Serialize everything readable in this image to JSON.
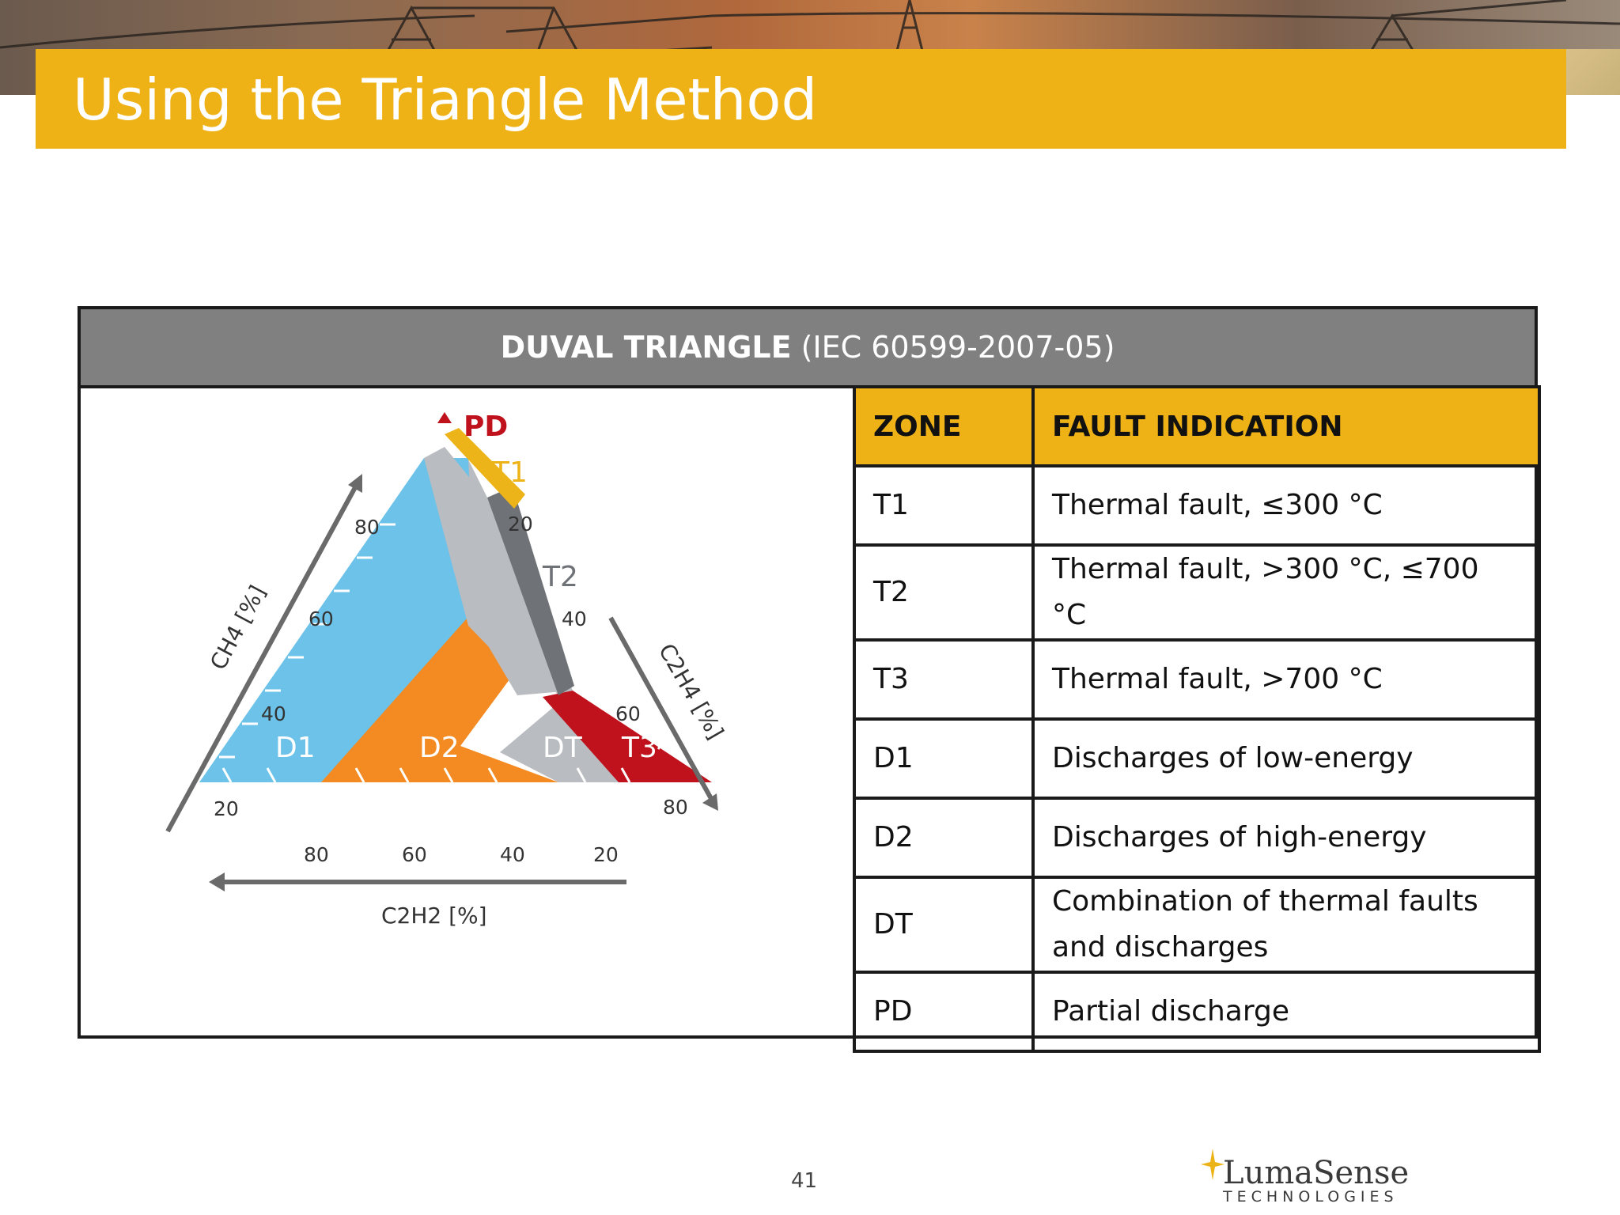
{
  "slide": {
    "title": "Using the Triangle Method",
    "page_number": "41"
  },
  "panel": {
    "header_bold": "DUVAL TRIANGLE",
    "header_rest": "(IEC 60599-2007-05)"
  },
  "diagram": {
    "zone_labels": {
      "pd": "PD",
      "t1": "T1",
      "t2": "T2",
      "t3": "T3",
      "d1": "D1",
      "d2": "D2",
      "dt": "DT"
    },
    "left_axis": {
      "label": "CH4 [%]",
      "ticks": [
        "80",
        "60",
        "40",
        "20"
      ]
    },
    "right_axis": {
      "label": "C2H4 [%]",
      "ticks": [
        "20",
        "40",
        "60",
        "80"
      ]
    },
    "bottom_axis": {
      "label": "C2H2 [%]",
      "ticks": [
        "80",
        "60",
        "40",
        "20"
      ]
    },
    "colors": {
      "d1": "#6cc2e8",
      "d2": "#f38a22",
      "dt": "#b9bcc0",
      "t1": "#edb419",
      "t2": "#6f7276",
      "t3": "#c0121d",
      "pd": "#c0121d"
    }
  },
  "table": {
    "headers": {
      "zone": "ZONE",
      "fault": "FAULT INDICATION"
    },
    "rows": [
      {
        "zone": "T1",
        "fault": "Thermal fault, ≤300 °C"
      },
      {
        "zone": "T2",
        "fault": "Thermal fault, >300 °C, ≤700 °C"
      },
      {
        "zone": "T3",
        "fault": "Thermal fault, >700 °C"
      },
      {
        "zone": "D1",
        "fault": "Discharges of low-energy"
      },
      {
        "zone": "D2",
        "fault": "Discharges of high-energy"
      },
      {
        "zone": "DT",
        "fault_line1": "Combination of thermal faults",
        "fault_line2": "and discharges"
      },
      {
        "zone": "PD",
        "fault": "Partial discharge"
      }
    ]
  },
  "logo": {
    "main": "LumaSense",
    "sub": "TECHNOLOGIES"
  }
}
